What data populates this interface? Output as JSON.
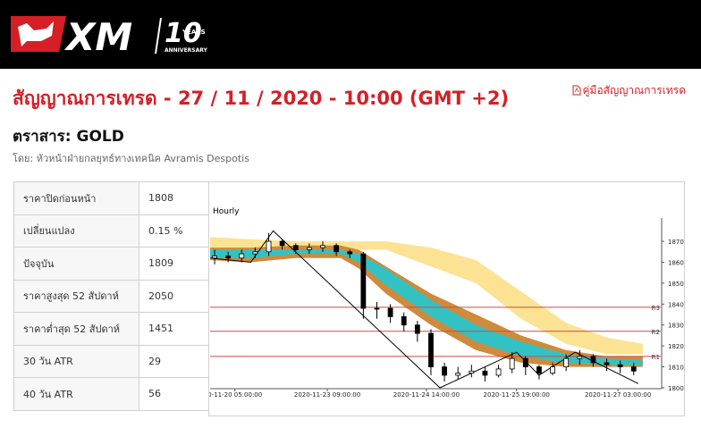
{
  "header": {
    "logo": "XM",
    "badge_number": "10",
    "badge_years": "YEARS",
    "badge_anniversary": "ANNIVERSARY"
  },
  "title": "สัญญาณการเทรด - 27 / 11 / 2020 - 10:00 (GMT +2)",
  "guide_link": "คู่มือสัญญาณการเทรด",
  "instrument": "ตราสาร: GOLD",
  "byline": "โดย: หัวหน้าฝ่ายกลยุทธ์ทางเทคนิค Avramis Despotis",
  "table": {
    "rows": [
      [
        "ราคาปิดก่อนหน้า",
        "1808"
      ],
      [
        "เปลี่ยนแปลง",
        "0.15 %"
      ],
      [
        "ปัจจุบัน",
        "1809"
      ],
      [
        "ราคาสูงสุด 52 สัปดาห์",
        "2050"
      ],
      [
        "ราคาต่ำสุด 52 สัปดาห์",
        "1451"
      ],
      [
        "30 วัน ATR",
        "29"
      ],
      [
        "40 วัน ATR",
        "56"
      ]
    ]
  },
  "chart_data": {
    "type": "candlestick",
    "title": "Hourly",
    "x": [
      1,
      4,
      7,
      10,
      13,
      16,
      19,
      22,
      25,
      28,
      31,
      34,
      37,
      40,
      43,
      46,
      49,
      52,
      55,
      58,
      61,
      64,
      67,
      70,
      73,
      76,
      79,
      82,
      85,
      88,
      91,
      94
    ],
    "open": [
      1862,
      1863,
      1862,
      1864,
      1865,
      1870,
      1868,
      1866,
      1867,
      1868,
      1865,
      1864,
      1838,
      1838,
      1834,
      1830,
      1826,
      1810,
      1806,
      1807,
      1808,
      1806,
      1809,
      1814,
      1810,
      1807,
      1810,
      1814,
      1815,
      1812,
      1811,
      1810
    ],
    "high": [
      1866,
      1865,
      1866,
      1867,
      1874,
      1871,
      1869,
      1869,
      1870,
      1869,
      1866,
      1865,
      1841,
      1840,
      1836,
      1832,
      1828,
      1812,
      1810,
      1811,
      1810,
      1811,
      1817,
      1815,
      1811,
      1812,
      1816,
      1818,
      1816,
      1814,
      1813,
      1812
    ],
    "low": [
      1859,
      1860,
      1860,
      1862,
      1863,
      1866,
      1864,
      1864,
      1865,
      1863,
      1862,
      1833,
      1833,
      1831,
      1827,
      1822,
      1806,
      1803,
      1804,
      1805,
      1803,
      1805,
      1807,
      1806,
      1804,
      1806,
      1808,
      1811,
      1810,
      1808,
      1807,
      1806
    ],
    "close": [
      1863,
      1862,
      1864,
      1865,
      1870,
      1868,
      1866,
      1867,
      1868,
      1865,
      1864,
      1838,
      1838,
      1834,
      1830,
      1826,
      1810,
      1806,
      1807,
      1808,
      1806,
      1809,
      1814,
      1810,
      1807,
      1810,
      1814,
      1815,
      1812,
      1811,
      1810,
      1808
    ],
    "up_color": "#ffffff",
    "down_color": "#000000",
    "band_x": [
      0,
      9,
      19,
      29,
      33,
      39,
      49,
      59,
      69,
      79,
      88,
      96
    ],
    "bands": [
      {
        "color": "#fbe393",
        "upper": [
          1872,
          1871,
          1870,
          1870,
          1870,
          1870,
          1867,
          1861,
          1846,
          1831,
          1824,
          1821
        ],
        "lower": [
          1866,
          1866,
          1866,
          1866,
          1866,
          1866,
          1858,
          1850,
          1833,
          1821,
          1816,
          1816
        ]
      },
      {
        "color": "#cf8a3c",
        "upper": [
          1867,
          1867,
          1868,
          1868,
          1866,
          1858,
          1845,
          1835,
          1825,
          1818,
          1815,
          1815
        ],
        "lower": [
          1861,
          1860,
          1862,
          1862,
          1857,
          1845,
          1830,
          1818,
          1812,
          1810,
          1810,
          1810
        ]
      },
      {
        "color": "#33c2c4",
        "upper": [
          1866,
          1866,
          1866,
          1866,
          1864,
          1857,
          1842,
          1830,
          1822,
          1816,
          1814,
          1813
        ],
        "lower": [
          1862,
          1862,
          1864,
          1864,
          1860,
          1849,
          1834,
          1822,
          1815,
          1812,
          1811,
          1811
        ]
      }
    ],
    "zigzag": {
      "color": "#000000",
      "x": [
        0,
        9,
        14,
        51,
        68,
        73,
        81,
        95
      ],
      "values": [
        1862,
        1860,
        1875,
        1800,
        1817,
        1806,
        1817,
        1802
      ]
    },
    "levels": [
      {
        "label": "R3",
        "value": 1838.5
      },
      {
        "label": "R2",
        "value": 1827
      },
      {
        "label": "R1",
        "value": 1815
      }
    ],
    "level_color": "#d04848",
    "xlim": [
      0,
      100
    ],
    "ylim": [
      1800,
      1879
    ],
    "yticks": [
      1800,
      1810,
      1820,
      1830,
      1840,
      1850,
      1860,
      1870
    ],
    "xticks": [
      {
        "value": 5.5,
        "label": "0-11-20 05:00:00"
      },
      {
        "value": 26,
        "label": "2020-11-23 09:00:00"
      },
      {
        "value": 48,
        "label": "2020-11-24 14:00:00"
      },
      {
        "value": 68,
        "label": "2020-11-25 19:00:00"
      },
      {
        "value": 90.5,
        "label": "2020-11-27 03:00:00"
      }
    ]
  }
}
